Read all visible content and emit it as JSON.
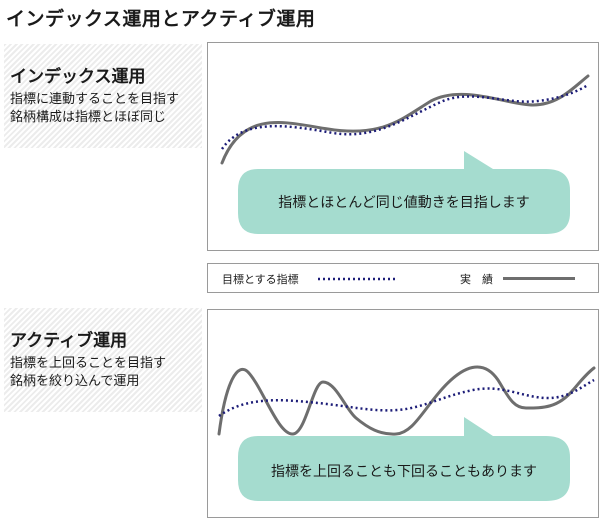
{
  "page": {
    "title": "インデックス運用とアクティブ運用"
  },
  "sections": [
    {
      "heading": "インデックス運用",
      "desc_line1": "指標に連動することを目指す",
      "desc_line2": "銘柄構成は指標とほぼ同じ",
      "bubble": "指標とほとんど同じ値動きを目指します"
    },
    {
      "heading": "アクティブ運用",
      "desc_line1": "指標を上回ることを目指す",
      "desc_line2": "銘柄を絞り込んで運用",
      "bubble": "指標を上回ることも下回ることもあります"
    }
  ],
  "legend": {
    "index_label": "目標とする指標",
    "actual_label": "実　績"
  },
  "colors": {
    "index_line": "#1d1d78",
    "actual_line": "#6e6e6e",
    "bubble_fill": "#a5dccf"
  }
}
